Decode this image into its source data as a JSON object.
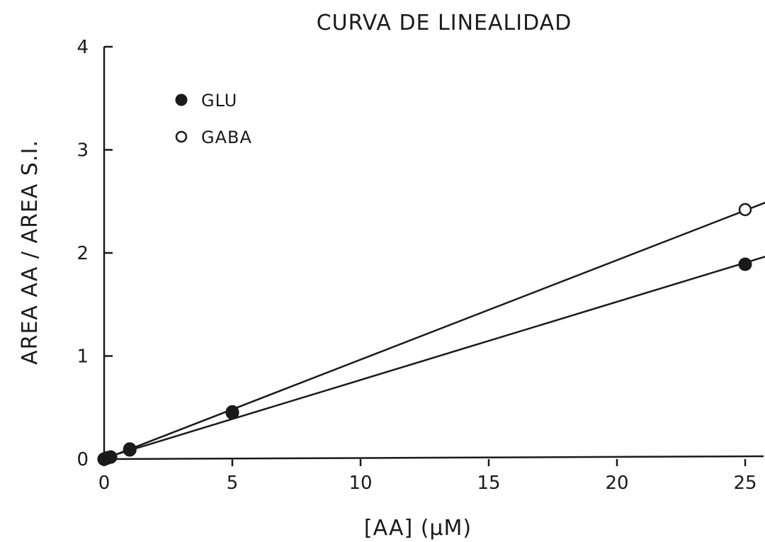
{
  "chart_data": {
    "type": "scatter",
    "title": "CURVA DE LINEALIDAD",
    "xlabel": "[AA] (μM)",
    "ylabel": "AREA AA / AREA S.I.",
    "xlim": [
      0,
      26
    ],
    "ylim": [
      0,
      4
    ],
    "xticks": [
      0,
      5,
      10,
      15,
      20,
      25
    ],
    "yticks": [
      0,
      1,
      2,
      3,
      4
    ],
    "grid": false,
    "legend_position": "top-left",
    "series": [
      {
        "name": "GLU",
        "marker": "filled-circle",
        "x": [
          0,
          0.1,
          0.25,
          1,
          5,
          25
        ],
        "y": [
          0,
          0.01,
          0.02,
          0.09,
          0.45,
          1.89
        ],
        "fit": {
          "slope": 0.0758,
          "intercept": 0.01
        }
      },
      {
        "name": "GABA",
        "marker": "open-circle",
        "x": [
          0,
          0.1,
          0.25,
          1,
          5,
          25
        ],
        "y": [
          0,
          0.01,
          0.02,
          0.1,
          0.46,
          2.42
        ],
        "fit": {
          "slope": 0.0965,
          "intercept": 0.0
        }
      }
    ]
  }
}
